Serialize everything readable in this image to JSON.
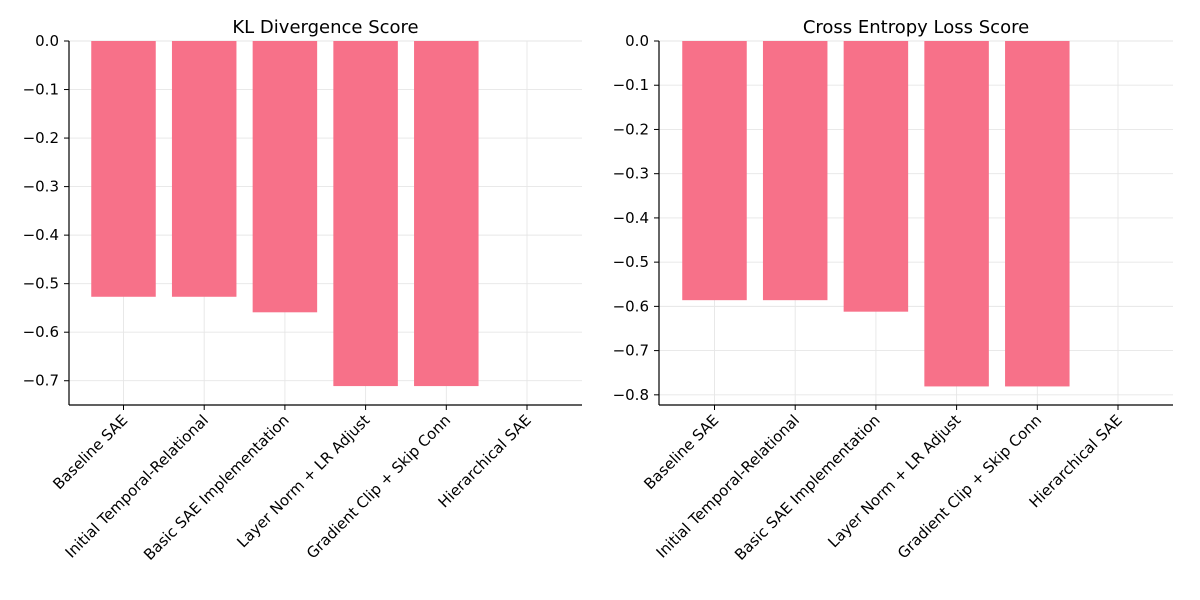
{
  "chart_data": [
    {
      "type": "bar",
      "title": "KL Divergence Score",
      "categories": [
        "Baseline SAE",
        "Initial Temporal-Relational",
        "Basic SAE Implementation",
        "Layer Norm + LR Adjust",
        "Gradient Clip + Skip Conn",
        "Hierarchical SAE"
      ],
      "values": [
        -0.527,
        -0.527,
        -0.559,
        -0.711,
        -0.711,
        0
      ],
      "ylim": [
        -0.75,
        0.0
      ],
      "yticks": [
        0.0,
        -0.1,
        -0.2,
        -0.3,
        -0.4,
        -0.5,
        -0.6,
        -0.7
      ],
      "ytick_labels": [
        "0.0",
        "−0.1",
        "−0.2",
        "−0.3",
        "−0.4",
        "−0.5",
        "−0.6",
        "−0.7"
      ],
      "grid": true,
      "color": "#f77189"
    },
    {
      "type": "bar",
      "title": "Cross Entropy Loss Score",
      "categories": [
        "Baseline SAE",
        "Initial Temporal-Relational",
        "Basic SAE Implementation",
        "Layer Norm + LR Adjust",
        "Gradient Clip + Skip Conn",
        "Hierarchical SAE"
      ],
      "values": [
        -0.586,
        -0.586,
        -0.612,
        -0.781,
        -0.781,
        0
      ],
      "ylim": [
        -0.823,
        0.0
      ],
      "yticks": [
        0.0,
        -0.1,
        -0.2,
        -0.3,
        -0.4,
        -0.5,
        -0.6,
        -0.7,
        -0.8
      ],
      "ytick_labels": [
        "0.0",
        "−0.1",
        "−0.2",
        "−0.3",
        "−0.4",
        "−0.5",
        "−0.6",
        "−0.7",
        "−0.8"
      ],
      "grid": true,
      "color": "#f77189"
    }
  ]
}
